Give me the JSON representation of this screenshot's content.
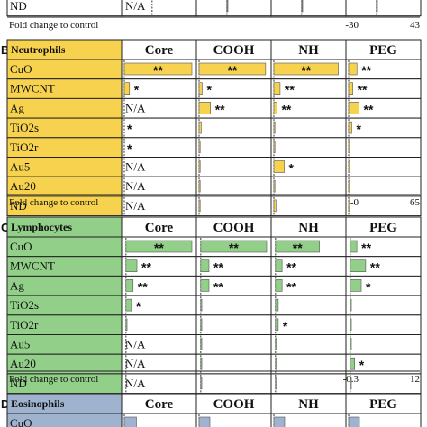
{
  "columns": [
    "Core",
    "COOH",
    "NH",
    "PEG"
  ],
  "chart_data": [
    {
      "type": "bar",
      "panel": "",
      "title": "",
      "color": "#ffffff",
      "categories": [
        "ND"
      ],
      "footer": "Fold change to control",
      "axis_labels": [
        "-30",
        "43"
      ],
      "xlim": [
        -30,
        43
      ],
      "series": [
        {
          "name": "Core",
          "values": [
            null
          ],
          "stars": [
            ""
          ],
          "na": [
            "N/A"
          ]
        },
        {
          "name": "COOH",
          "values": [
            0
          ],
          "stars": [
            ""
          ],
          "na": [
            ""
          ]
        },
        {
          "name": "NH",
          "values": [
            0
          ],
          "stars": [
            ""
          ],
          "na": [
            ""
          ]
        },
        {
          "name": "PEG",
          "values": [
            0
          ],
          "stars": [
            ""
          ],
          "na": [
            ""
          ]
        }
      ],
      "bar_color": "#8e8e8e"
    },
    {
      "type": "bar",
      "panel": "B",
      "title": "Neutrophils",
      "color": "#f7d24f",
      "categories": [
        "CuO",
        "MWCNT",
        "Ag",
        "TiO2s",
        "TiO2r",
        "Au5",
        "Au20",
        "ND"
      ],
      "footer": "Fold change to control",
      "axis_labels": [
        "-0",
        "65"
      ],
      "xlim": [
        0,
        65
      ],
      "series": [
        {
          "name": "Core",
          "values": [
            65,
            5,
            null,
            null,
            null,
            null,
            null,
            null
          ],
          "stars": [
            "**",
            "*",
            "",
            "*",
            "*",
            "",
            "",
            ""
          ],
          "na": [
            "",
            "",
            "N/A",
            "",
            "",
            "N/A",
            "N/A",
            "N/A"
          ]
        },
        {
          "name": "COOH",
          "values": [
            64,
            3,
            11,
            2,
            1,
            0.5,
            0.5,
            0.5
          ],
          "stars": [
            "**",
            "*",
            "**",
            "",
            "",
            "",
            "",
            ""
          ],
          "na": [
            "",
            "",
            "",
            "",
            "",
            "",
            "",
            ""
          ]
        },
        {
          "name": "NH",
          "values": [
            62,
            6,
            3,
            0.5,
            0.5,
            10,
            0.5,
            2
          ],
          "stars": [
            "**",
            "**",
            "**",
            "",
            "",
            "*",
            "",
            ""
          ],
          "na": [
            "",
            "",
            "",
            "",
            "",
            "",
            "",
            ""
          ]
        },
        {
          "name": "PEG",
          "values": [
            8,
            4,
            10,
            3,
            0.5,
            0.5,
            0.5,
            0.5
          ],
          "stars": [
            "**",
            "**",
            "**",
            "*",
            "",
            "",
            "",
            ""
          ],
          "na": [
            "",
            "",
            "",
            "",
            "",
            "",
            "",
            ""
          ]
        }
      ],
      "bar_color": "#f7d24f"
    },
    {
      "type": "bar",
      "panel": "C",
      "title": "Lymphocytes",
      "color": "#92cf88",
      "categories": [
        "CuO",
        "MWCNT",
        "Ag",
        "TiO2s",
        "TiO2r",
        "Au5",
        "Au20",
        "ND"
      ],
      "footer": "Fold change to control",
      "axis_labels": [
        "-0.3",
        "12"
      ],
      "xlim": [
        -0.3,
        12
      ],
      "series": [
        {
          "name": "Core",
          "values": [
            12,
            2,
            1.3,
            1,
            0,
            null,
            null,
            null
          ],
          "stars": [
            "**",
            "**",
            "**",
            "*",
            "",
            "",
            "",
            ""
          ],
          "na": [
            "",
            "",
            "",
            "",
            "",
            "N/A",
            "N/A",
            "N/A"
          ]
        },
        {
          "name": "COOH",
          "values": [
            12,
            1.5,
            1.5,
            0.1,
            0.1,
            0.1,
            0.1,
            0.1
          ],
          "stars": [
            "**",
            "**",
            "**",
            "",
            "",
            "",
            "",
            ""
          ],
          "na": [
            "",
            "",
            "",
            "",
            "",
            "",
            "",
            ""
          ]
        },
        {
          "name": "NH",
          "values": [
            8,
            1.2,
            1.2,
            0.5,
            0.5,
            0.1,
            0.1,
            0.1
          ],
          "stars": [
            "**",
            "**",
            "**",
            "",
            "*",
            "",
            "",
            ""
          ],
          "na": [
            "",
            "",
            "",
            "",
            "",
            "",
            "",
            ""
          ]
        },
        {
          "name": "PEG",
          "values": [
            1.2,
            2.8,
            2,
            0.1,
            0.1,
            0.1,
            0.8,
            0.1
          ],
          "stars": [
            "**",
            "**",
            "*",
            "",
            "",
            "",
            "*",
            ""
          ],
          "na": [
            "",
            "",
            "",
            "",
            "",
            "",
            "",
            ""
          ]
        }
      ],
      "bar_color": "#92cf88"
    },
    {
      "type": "bar",
      "panel": "D",
      "title": "Eosinophils",
      "color": "#9fb3cf",
      "categories": [
        "CuO"
      ],
      "footer": "",
      "axis_labels": [],
      "xlim": [
        0,
        10
      ],
      "series": [
        {
          "name": "Core",
          "values": [
            1.8
          ],
          "stars": [
            ""
          ],
          "na": [
            ""
          ]
        },
        {
          "name": "COOH",
          "values": [
            1.6
          ],
          "stars": [
            ""
          ],
          "na": [
            ""
          ]
        },
        {
          "name": "NH",
          "values": [
            1.6
          ],
          "stars": [
            ""
          ],
          "na": [
            ""
          ]
        },
        {
          "name": "PEG",
          "values": [
            1.6
          ],
          "stars": [
            ""
          ],
          "na": [
            ""
          ]
        }
      ],
      "bar_color": "#9fb3cf"
    }
  ]
}
